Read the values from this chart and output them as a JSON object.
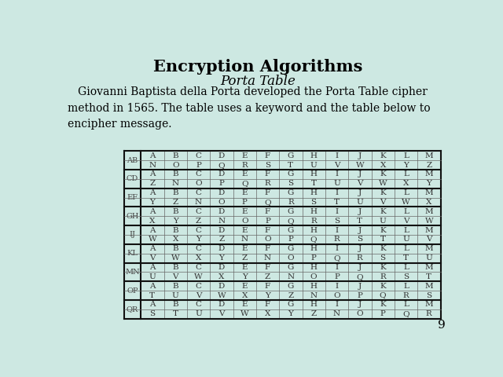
{
  "title": "Encryption Algorithms",
  "subtitle": "Porta Table",
  "body_text": "   Giovanni Baptista della Porta developed the Porta Table cipher\nmethod in 1565. The table uses a keyword and the table below to\nencipher message.",
  "page_number": "9",
  "background_color": "#cde8e2",
  "row_labels": [
    "AB",
    "CD",
    "EF",
    "GH",
    "IJ",
    "KL",
    "MN",
    "OP",
    "QR"
  ],
  "table_data": [
    [
      "A",
      "B",
      "C",
      "D",
      "E",
      "F",
      "G",
      "H",
      "I",
      "J",
      "K",
      "L",
      "M"
    ],
    [
      "N",
      "O",
      "P",
      "Q",
      "R",
      "S",
      "T",
      "U",
      "V",
      "W",
      "X",
      "Y",
      "Z"
    ],
    [
      "A",
      "B",
      "C",
      "D",
      "E",
      "F",
      "G",
      "H",
      "I",
      "J",
      "K",
      "L",
      "M"
    ],
    [
      "Z",
      "N",
      "O",
      "P",
      "Q",
      "R",
      "S",
      "T",
      "U",
      "V",
      "W",
      "X",
      "Y"
    ],
    [
      "A",
      "B",
      "C",
      "D",
      "E",
      "F",
      "G",
      "H",
      "I",
      "J",
      "K",
      "L",
      "M"
    ],
    [
      "Y",
      "Z",
      "N",
      "O",
      "P",
      "Q",
      "R",
      "S",
      "T",
      "U",
      "V",
      "W",
      "X"
    ],
    [
      "A",
      "B",
      "C",
      "D",
      "E",
      "F",
      "G",
      "H",
      "I",
      "J",
      "K",
      "L",
      "M"
    ],
    [
      "X",
      "Y",
      "Z",
      "N",
      "O",
      "P",
      "Q",
      "R",
      "S",
      "T",
      "U",
      "V",
      "W"
    ],
    [
      "A",
      "B",
      "C",
      "D",
      "E",
      "F",
      "G",
      "H",
      "I",
      "J",
      "K",
      "L",
      "M"
    ],
    [
      "W",
      "X",
      "Y",
      "Z",
      "N",
      "O",
      "P",
      "Q",
      "R",
      "S",
      "T",
      "U",
      "V"
    ],
    [
      "A",
      "B",
      "C",
      "D",
      "E",
      "F",
      "G",
      "H",
      "I",
      "J",
      "K",
      "L",
      "M"
    ],
    [
      "V",
      "W",
      "X",
      "Y",
      "Z",
      "N",
      "O",
      "P",
      "Q",
      "R",
      "S",
      "T",
      "U"
    ],
    [
      "A",
      "B",
      "C",
      "D",
      "E",
      "F",
      "G",
      "H",
      "I",
      "J",
      "K",
      "L",
      "M"
    ],
    [
      "U",
      "V",
      "W",
      "X",
      "Y",
      "Z",
      "N",
      "O",
      "P",
      "Q",
      "R",
      "S",
      "T"
    ],
    [
      "A",
      "B",
      "C",
      "D",
      "E",
      "F",
      "G",
      "H",
      "I",
      "J",
      "K",
      "L",
      "M"
    ],
    [
      "T",
      "U",
      "V",
      "W",
      "X",
      "Y",
      "Z",
      "N",
      "O",
      "P",
      "Q",
      "R",
      "S"
    ],
    [
      "A",
      "B",
      "C",
      "D",
      "E",
      "F",
      "G",
      "H",
      "I",
      "J",
      "K",
      "L",
      "M"
    ],
    [
      "S",
      "T",
      "U",
      "V",
      "W",
      "X",
      "Y",
      "Z",
      "N",
      "O",
      "P",
      "Q",
      "R"
    ]
  ],
  "cell_bg": "#cde8e2",
  "border_color": "#666666",
  "thick_border_color": "#111111",
  "text_color": "#333333",
  "label_color": "#444444",
  "title_fontsize": 15,
  "subtitle_fontsize": 12,
  "body_fontsize": 10,
  "cell_fontsize": 7.5,
  "label_fontsize": 7
}
